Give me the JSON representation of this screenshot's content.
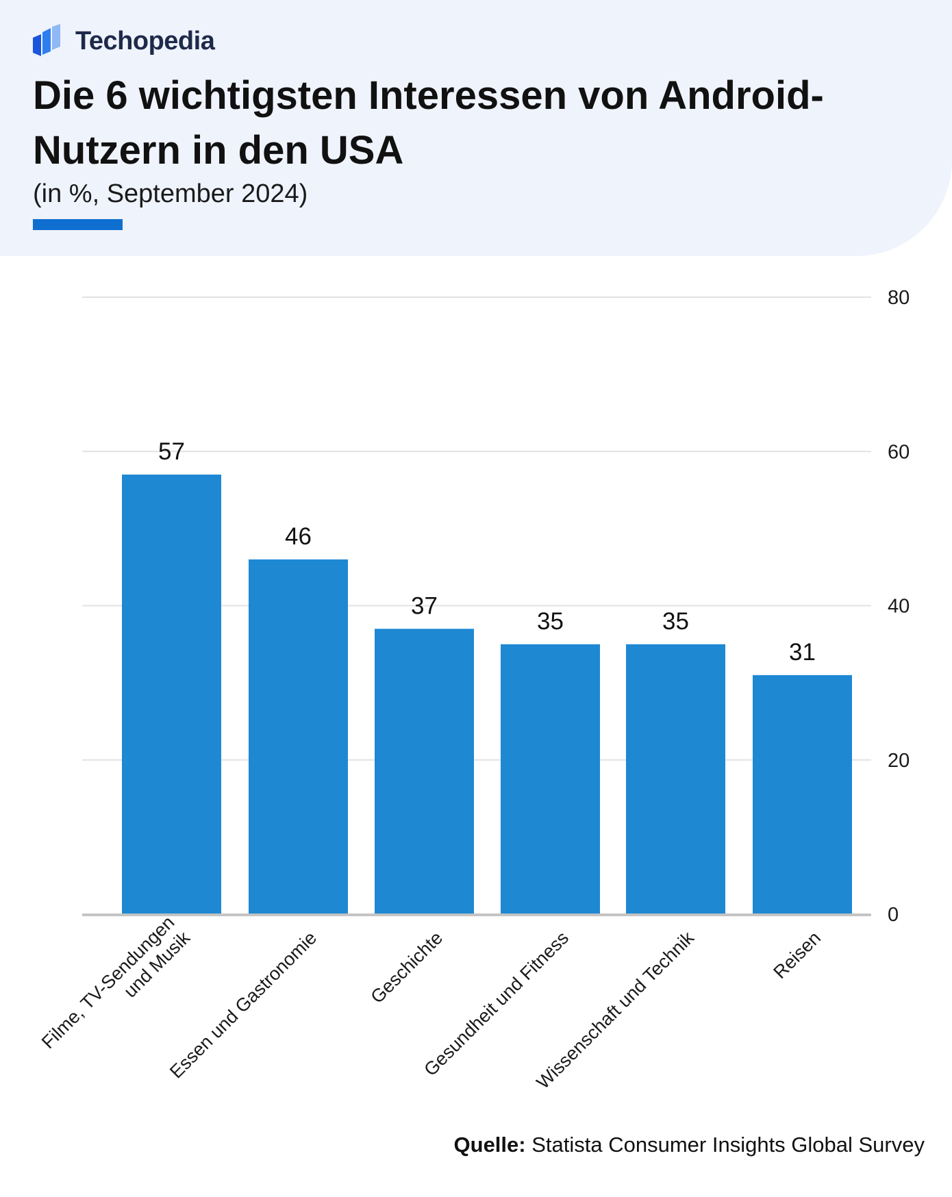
{
  "brand": {
    "name": "Techopedia",
    "logo_icon": "techopedia-logo-icon"
  },
  "header": {
    "title": "Die 6 wichtigsten Interessen von Android-Nutzern in den USA",
    "subtitle": "(in %, September 2024)"
  },
  "colors": {
    "bar": "#1e88d3",
    "accent": "#0e6fd1",
    "header_bg": "#eff3fc",
    "grid": "#e2e2e2",
    "baseline": "#c4c4c4"
  },
  "chart_data": {
    "type": "bar",
    "title": "Die 6 wichtigsten Interessen von Android-Nutzern in den USA",
    "subtitle": "(in %, September 2024)",
    "categories": [
      [
        "Filme, TV-Sendungen",
        "und Musik"
      ],
      [
        "Essen und Gastronomie"
      ],
      [
        "Geschichte"
      ],
      [
        "Gesundheit und Fitness"
      ],
      [
        "Wissenschaft und Technik"
      ],
      [
        "Reisen"
      ]
    ],
    "values": [
      57,
      46,
      37,
      35,
      35,
      31
    ],
    "ylim": [
      0,
      80
    ],
    "yticks": [
      0,
      20,
      40,
      60,
      80
    ],
    "y_axis_position": "right",
    "grid": true,
    "xlabel": "",
    "ylabel": ""
  },
  "source": {
    "label": "Quelle:",
    "text": "Statista Consumer Insights Global Survey"
  }
}
